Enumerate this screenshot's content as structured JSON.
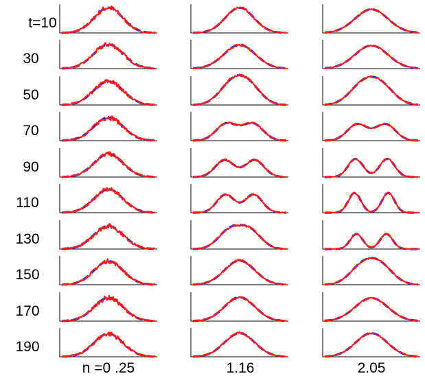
{
  "chart_data": {
    "type": "line",
    "row_labels": [
      "t=10",
      "30",
      "50",
      "70",
      "90",
      "110",
      "130",
      "150",
      "170",
      "190"
    ],
    "column_labels": [
      "n =0 .25",
      "1.16",
      "2.05"
    ],
    "grid": false,
    "colors": {
      "data": "#ff1a1a",
      "fit": "#1a1aff",
      "axis": "#000000"
    },
    "series_styles": {
      "data": "solid",
      "fit": "dashed"
    },
    "x_range": [
      -1,
      1
    ],
    "y_range": [
      0,
      1
    ],
    "panels": [
      [
        {
          "peaks": [
            {
              "c": 0,
              "w": 0.45,
              "a": 0.92
            }
          ],
          "noise": 0.07
        },
        {
          "peaks": [
            {
              "c": 0,
              "w": 0.47,
              "a": 0.88
            }
          ],
          "noise": 0.07
        },
        {
          "peaks": [
            {
              "c": 0,
              "w": 0.47,
              "a": 0.86
            }
          ],
          "noise": 0.07
        },
        {
          "peaks": [
            {
              "c": 0,
              "w": 0.46,
              "a": 0.85
            }
          ],
          "noise": 0.07
        },
        {
          "peaks": [
            {
              "c": 0,
              "w": 0.46,
              "a": 0.84
            }
          ],
          "noise": 0.06
        },
        {
          "peaks": [
            {
              "c": 0,
              "w": 0.46,
              "a": 0.85
            }
          ],
          "noise": 0.06
        },
        {
          "peaks": [
            {
              "c": 0,
              "w": 0.47,
              "a": 0.84
            }
          ],
          "noise": 0.07
        },
        {
          "peaks": [
            {
              "c": 0,
              "w": 0.46,
              "a": 0.86
            }
          ],
          "noise": 0.06
        },
        {
          "peaks": [
            {
              "c": 0,
              "w": 0.46,
              "a": 0.85
            }
          ],
          "noise": 0.07
        },
        {
          "peaks": [
            {
              "c": 0,
              "w": 0.46,
              "a": 0.84
            }
          ],
          "noise": 0.07
        }
      ],
      [
        {
          "peaks": [
            {
              "c": 0,
              "w": 0.45,
              "a": 0.92
            }
          ],
          "noise": 0.03
        },
        {
          "peaks": [
            {
              "c": 0,
              "w": 0.5,
              "a": 0.86
            }
          ],
          "noise": 0.03
        },
        {
          "peaks": [
            {
              "c": -0.18,
              "w": 0.4,
              "a": 0.68
            },
            {
              "c": 0.18,
              "w": 0.4,
              "a": 0.68
            }
          ],
          "noise": 0.03
        },
        {
          "peaks": [
            {
              "c": -0.28,
              "w": 0.33,
              "a": 0.62
            },
            {
              "c": 0.28,
              "w": 0.33,
              "a": 0.62
            }
          ],
          "noise": 0.03
        },
        {
          "peaks": [
            {
              "c": -0.32,
              "w": 0.3,
              "a": 0.62
            },
            {
              "c": 0.32,
              "w": 0.3,
              "a": 0.62
            }
          ],
          "noise": 0.03
        },
        {
          "peaks": [
            {
              "c": -0.3,
              "w": 0.28,
              "a": 0.66
            },
            {
              "c": 0.3,
              "w": 0.28,
              "a": 0.66
            }
          ],
          "noise": 0.03
        },
        {
          "peaks": [
            {
              "c": -0.22,
              "w": 0.36,
              "a": 0.66
            },
            {
              "c": 0.22,
              "w": 0.36,
              "a": 0.66
            }
          ],
          "noise": 0.03
        },
        {
          "peaks": [
            {
              "c": 0,
              "w": 0.48,
              "a": 0.88
            }
          ],
          "noise": 0.03
        },
        {
          "peaks": [
            {
              "c": 0,
              "w": 0.48,
              "a": 0.87
            }
          ],
          "noise": 0.03
        },
        {
          "peaks": [
            {
              "c": 0,
              "w": 0.48,
              "a": 0.86
            }
          ],
          "noise": 0.03
        }
      ],
      [
        {
          "peaks": [
            {
              "c": 0,
              "w": 0.52,
              "a": 0.86
            }
          ],
          "noise": 0.02
        },
        {
          "peaks": [
            {
              "c": 0,
              "w": 0.52,
              "a": 0.84
            }
          ],
          "noise": 0.02
        },
        {
          "peaks": [
            {
              "c": -0.2,
              "w": 0.42,
              "a": 0.66
            },
            {
              "c": 0.2,
              "w": 0.42,
              "a": 0.66
            }
          ],
          "noise": 0.02
        },
        {
          "peaks": [
            {
              "c": -0.3,
              "w": 0.32,
              "a": 0.6
            },
            {
              "c": 0.3,
              "w": 0.32,
              "a": 0.6
            }
          ],
          "noise": 0.02
        },
        {
          "peaks": [
            {
              "c": -0.34,
              "w": 0.24,
              "a": 0.66
            },
            {
              "c": 0.34,
              "w": 0.24,
              "a": 0.66
            }
          ],
          "noise": 0.02
        },
        {
          "peaks": [
            {
              "c": -0.36,
              "w": 0.2,
              "a": 0.72
            },
            {
              "c": 0.36,
              "w": 0.2,
              "a": 0.72
            }
          ],
          "noise": 0.02
        },
        {
          "peaks": [
            {
              "c": -0.32,
              "w": 0.2,
              "a": 0.55
            },
            {
              "c": 0.32,
              "w": 0.2,
              "a": 0.55
            }
          ],
          "noise": 0.02
        },
        {
          "peaks": [
            {
              "c": -0.2,
              "w": 0.4,
              "a": 0.64
            },
            {
              "c": 0.2,
              "w": 0.4,
              "a": 0.64
            }
          ],
          "noise": 0.02
        },
        {
          "peaks": [
            {
              "c": 0,
              "w": 0.52,
              "a": 0.84
            }
          ],
          "noise": 0.02
        },
        {
          "peaks": [
            {
              "c": 0,
              "w": 0.5,
              "a": 0.86
            }
          ],
          "noise": 0.02
        }
      ]
    ]
  }
}
